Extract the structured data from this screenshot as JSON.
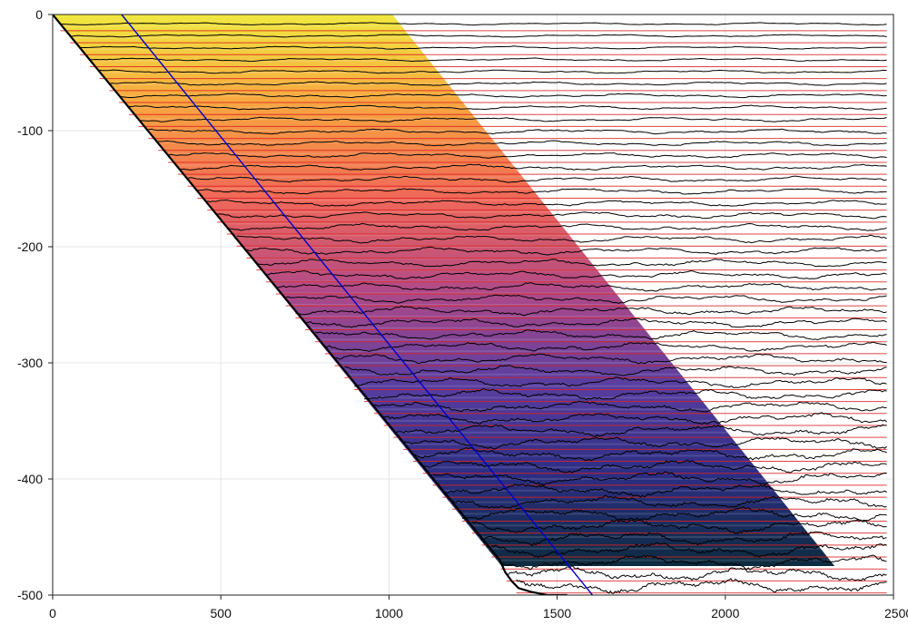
{
  "chart_data": {
    "type": "line",
    "title": "",
    "xlabel": "",
    "ylabel": "",
    "xlim": [
      0,
      2500
    ],
    "ylim": [
      -500,
      0
    ],
    "x_ticks": [
      0,
      500,
      1000,
      1500,
      2000,
      2500
    ],
    "y_ticks": [
      0,
      -100,
      -200,
      -300,
      -400,
      -500
    ],
    "x_tick_labels": [
      "0",
      "500",
      "1000",
      "1500",
      "2000",
      "2500"
    ],
    "y_tick_labels": [
      "0",
      "-100",
      "-200",
      "-300",
      "-400",
      "-500"
    ],
    "grid": true,
    "legend": "none",
    "wedge": {
      "colormap": [
        "#f0e840",
        "#f8a440",
        "#f06858",
        "#b04a88",
        "#5a3ea0",
        "#2c2e84",
        "#0c2c40"
      ],
      "top_left_x": 0,
      "top_right_x": 1010,
      "bottom_left_x": 1335,
      "bottom_right_x": 2325,
      "top_y": 0,
      "bottom_y": -475,
      "stripe_spacing_y": 10
    },
    "floor_line": {
      "color": "#000000",
      "points": [
        [
          0,
          0
        ],
        [
          1330,
          -470
        ],
        [
          1345,
          -480
        ],
        [
          1365,
          -488
        ],
        [
          1385,
          -494
        ],
        [
          1420,
          -497
        ],
        [
          1470,
          -500
        ],
        [
          1530,
          -500
        ]
      ]
    },
    "blue_line": {
      "color": "#0000cc",
      "x_start": 205,
      "y_start": 0,
      "x_end": 1605,
      "y_end": -500
    },
    "profiles": {
      "count": 48,
      "first_y": -8,
      "spacing_y": 10.3,
      "x_end": 2480,
      "baseline_color": "#dd2222",
      "line_color": "#000000",
      "baseline_offset": -6
    }
  }
}
